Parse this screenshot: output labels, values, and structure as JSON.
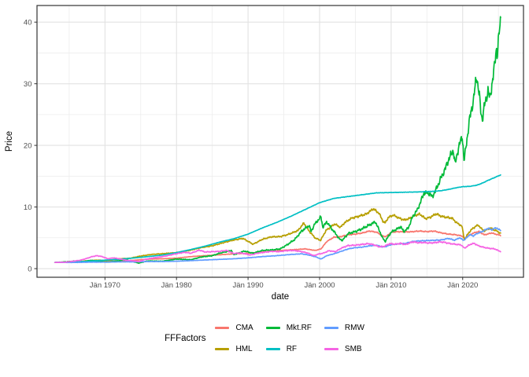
{
  "chart_data": {
    "type": "line",
    "title": "",
    "xlabel": "date",
    "ylabel": "Price",
    "legend_title": "FFFactors",
    "legend_position": "bottom",
    "grid": true,
    "x_range_years": [
      1960.5,
      2028.5
    ],
    "y_range": [
      -1.4,
      42.7
    ],
    "y_ticks": [
      0,
      10,
      20,
      30,
      40
    ],
    "y_minor": [
      5,
      15,
      25,
      35
    ],
    "x_ticks": [
      {
        "label": "Jän 1970",
        "year": 1970
      },
      {
        "label": "Jän 1980",
        "year": 1980
      },
      {
        "label": "Jän 1990",
        "year": 1990
      },
      {
        "label": "Jän 2000",
        "year": 2000
      },
      {
        "label": "Jän 2010",
        "year": 2010
      },
      {
        "label": "Jän 2020",
        "year": 2020
      }
    ],
    "x_minor_years": [
      1965,
      1975,
      1985,
      1995,
      2005,
      2015,
      2025
    ],
    "style": {
      "panel_bg": "#FFFFFF",
      "grid_major": "#E2E2E2",
      "grid_minor": "#EDEDED",
      "panel_border": "#333333",
      "tick_color": "#333333",
      "axis_text_color": "#4D4D4D",
      "axis_title_color": "#000000"
    },
    "series": [
      {
        "name": "CMA",
        "color": "#F8766D",
        "wiggle": 0.018,
        "x": [
          1963,
          1966,
          1968,
          1970,
          1972,
          1974,
          1976,
          1978,
          1980,
          1982,
          1984,
          1986,
          1988,
          1990,
          1992,
          1994,
          1996,
          1998,
          1999.4,
          2000.2,
          2001,
          2002,
          2003,
          2004,
          2005,
          2006,
          2007,
          2008,
          2008.8,
          2009.3,
          2010,
          2011,
          2012,
          2013,
          2014,
          2015,
          2016,
          2017,
          2018,
          2019,
          2019.9,
          2020.3,
          2021,
          2021.8,
          2022.3,
          2023,
          2023.5,
          2024,
          2024.6,
          2025.3
        ],
        "y": [
          1,
          1.05,
          1.1,
          1.15,
          1.25,
          1.35,
          1.55,
          1.6,
          1.7,
          1.95,
          2.1,
          2.25,
          2.4,
          2.5,
          2.7,
          2.9,
          3.05,
          3.2,
          2.95,
          3.2,
          4.4,
          5.1,
          5.2,
          5.5,
          5.6,
          5.8,
          6.1,
          5.9,
          5.3,
          5.2,
          5.9,
          6,
          5.95,
          6,
          6.1,
          6,
          6.1,
          5.8,
          5.6,
          5.5,
          5.3,
          4.9,
          5.5,
          5.9,
          6,
          5.5,
          5.6,
          5.8,
          5.6,
          5.4
        ]
      },
      {
        "name": "HML",
        "color": "#B79F00",
        "wiggle": 0.026,
        "x": [
          1963,
          1965,
          1966,
          1967.5,
          1969,
          1970.5,
          1972,
          1973.5,
          1975,
          1976.5,
          1978,
          1980,
          1982,
          1983.5,
          1985,
          1986.5,
          1988,
          1989.3,
          1990.7,
          1992,
          1993.2,
          1994.5,
          1995.5,
          1997,
          1997.8,
          1998.6,
          1999.4,
          2000.15,
          2000.9,
          2001.5,
          2002.1,
          2002.9,
          2003.5,
          2004.5,
          2005.5,
          2006.5,
          2007.5,
          2008.3,
          2008.9,
          2009.15,
          2009.6,
          2010.3,
          2011,
          2011.8,
          2012.5,
          2013.2,
          2014,
          2014.8,
          2015.5,
          2016.3,
          2017,
          2017.8,
          2018.5,
          2019.2,
          2019.9,
          2020.25,
          2020.7,
          2021.2,
          2021.9,
          2022.2,
          2022.6,
          2023,
          2023.4,
          2023.9,
          2024.3,
          2024.8,
          2025.3
        ],
        "y": [
          1,
          1.05,
          1.12,
          1.28,
          1.38,
          1.3,
          1.6,
          1.68,
          2.05,
          2.3,
          2.42,
          2.6,
          3,
          3.42,
          3.7,
          4.2,
          4.65,
          4.9,
          3.95,
          4.75,
          5.15,
          5.2,
          5.5,
          6.2,
          7.4,
          6,
          4.95,
          4.6,
          6.2,
          6.7,
          7.25,
          6.7,
          7.45,
          8.2,
          8.5,
          8.85,
          9.7,
          9,
          7.6,
          7.4,
          8.3,
          8.7,
          8.25,
          7.9,
          8.1,
          8.6,
          8.85,
          8.1,
          8.35,
          8.9,
          8.5,
          8.3,
          8.2,
          7.4,
          6.9,
          4.6,
          5.6,
          6.3,
          6.95,
          7.05,
          6.5,
          6.1,
          6.35,
          6.6,
          6.3,
          6.1,
          5.7
        ]
      },
      {
        "name": "Mkt.RF",
        "color": "#00BA38",
        "wiggle": 0.04,
        "x": [
          1963,
          1965,
          1966,
          1966.9,
          1968,
          1969.5,
          1970.5,
          1972.9,
          1974.7,
          1976,
          1978,
          1980,
          1982,
          1983.5,
          1985,
          1986,
          1987.7,
          1987.95,
          1989.5,
          1990.7,
          1992,
          1993.5,
          1994.5,
          1995.5,
          1996.5,
          1997.5,
          1998.55,
          1998.8,
          1999.3,
          2000.2,
          2000.45,
          2001,
          2001.8,
          2002.3,
          2002.75,
          2003.2,
          2004,
          2005,
          2006,
          2007.8,
          2008.8,
          2009.15,
          2010,
          2011.35,
          2011.75,
          2012.4,
          2013,
          2013.7,
          2014.6,
          2015.4,
          2015.7,
          2016.2,
          2017,
          2017.6,
          2018.1,
          2018.7,
          2018.95,
          2019.4,
          2019.95,
          2020.2,
          2020.6,
          2021,
          2021.5,
          2021.95,
          2022.35,
          2022.55,
          2022.75,
          2023.1,
          2023.55,
          2023.8,
          2024.1,
          2024.45,
          2024.7,
          2024.85,
          2025.05,
          2025.3
        ],
        "y": [
          1,
          1.15,
          1.25,
          1.1,
          1.35,
          1.15,
          1.05,
          1.45,
          0.9,
          1.25,
          1.2,
          1.55,
          1.45,
          1.9,
          2.1,
          2.5,
          2.95,
          2.25,
          2.85,
          2.5,
          2.95,
          3.05,
          3.2,
          3.9,
          4.7,
          6.1,
          7,
          6,
          7.2,
          8.4,
          6.7,
          7.6,
          6.3,
          5.6,
          4.8,
          4.6,
          5.7,
          6,
          6.5,
          7.6,
          5,
          4.4,
          5.9,
          6.8,
          6,
          6.6,
          8.4,
          9.6,
          12.3,
          12.2,
          11.6,
          12.6,
          14.8,
          16.3,
          17.9,
          19.2,
          16.9,
          19.6,
          21.5,
          17.4,
          21,
          24.5,
          27.3,
          31.4,
          27.8,
          25.4,
          24.2,
          26.8,
          28.9,
          27.5,
          30,
          32.8,
          35.8,
          34.8,
          37.6,
          40.3
        ]
      },
      {
        "name": "RF",
        "color": "#00BFC4",
        "wiggle": 0.003,
        "x": [
          1963,
          1966,
          1968,
          1970,
          1972,
          1974,
          1976,
          1978,
          1980,
          1982,
          1984,
          1986,
          1988,
          1990,
          1992,
          1994,
          1996,
          1998,
          2000,
          2002,
          2004,
          2006,
          2008,
          2010,
          2012,
          2014,
          2016,
          2017,
          2018,
          2019,
          2020,
          2021,
          2022,
          2022.8,
          2023.5,
          2024.3,
          2025.3
        ],
        "y": [
          1,
          1.12,
          1.22,
          1.38,
          1.52,
          1.72,
          1.95,
          2.2,
          2.6,
          3.1,
          3.65,
          4.3,
          4.85,
          5.6,
          6.6,
          7.5,
          8.5,
          9.6,
          10.7,
          11.4,
          11.7,
          12,
          12.3,
          12.35,
          12.4,
          12.45,
          12.55,
          12.65,
          12.85,
          13.1,
          13.3,
          13.35,
          13.55,
          13.9,
          14.3,
          14.7,
          15.2
        ]
      },
      {
        "name": "RMW",
        "color": "#619CFF",
        "wiggle": 0.02,
        "x": [
          1963,
          1966,
          1968,
          1970,
          1972,
          1974,
          1976,
          1978,
          1980,
          1982,
          1984,
          1986,
          1988,
          1990,
          1992,
          1994,
          1996,
          1997.5,
          1998.5,
          1999.5,
          2000.2,
          2001,
          2002,
          2003,
          2004,
          2005,
          2006,
          2007,
          2008,
          2008.8,
          2009.3,
          2010,
          2011,
          2012,
          2013,
          2014,
          2015,
          2016,
          2017,
          2018,
          2018.9,
          2019.5,
          2020.2,
          2020.6,
          2021,
          2021.5,
          2022,
          2022.5,
          2023,
          2023.6,
          2024,
          2024.4,
          2024.75,
          2025,
          2025.3
        ],
        "y": [
          1,
          1,
          1.05,
          1.05,
          1.1,
          1.1,
          1.15,
          1.15,
          1.2,
          1.3,
          1.4,
          1.5,
          1.6,
          1.75,
          1.95,
          2.1,
          2.3,
          2.4,
          2.2,
          1.9,
          1.55,
          2.1,
          2.4,
          2.8,
          3.2,
          3.4,
          3.5,
          3.7,
          3.8,
          3.5,
          3.6,
          3.9,
          4,
          4.1,
          4.4,
          4.5,
          4.55,
          4.6,
          4.65,
          4.9,
          4.6,
          5,
          4.6,
          5.1,
          5.5,
          5.3,
          5.7,
          5.9,
          6.2,
          6.55,
          6.3,
          6.5,
          6.6,
          6.4,
          6.2
        ]
      },
      {
        "name": "SMB",
        "color": "#F564E3",
        "wiggle": 0.032,
        "x": [
          1963,
          1964.5,
          1965.5,
          1966.5,
          1967.3,
          1968.2,
          1968.9,
          1969.6,
          1970.4,
          1971.2,
          1972,
          1973,
          1974,
          1974.8,
          1975.5,
          1976.5,
          1977.5,
          1978.5,
          1979.5,
          1980.4,
          1981.2,
          1982,
          1983.2,
          1984,
          1985,
          1986,
          1987,
          1988,
          1989,
          1990.3,
          1991.3,
          1992.3,
          1993.3,
          1994.3,
          1995.3,
          1996.3,
          1997.3,
          1998.3,
          1999.2,
          1999.8,
          2000.5,
          2001.3,
          2002.2,
          2003,
          2004,
          2005,
          2006,
          2006.8,
          2007.5,
          2008.3,
          2009,
          2009.8,
          2010.5,
          2011.3,
          2012,
          2013,
          2013.8,
          2014.5,
          2015.3,
          2016,
          2016.8,
          2017.5,
          2018.3,
          2019,
          2019.8,
          2020.25,
          2020.8,
          2021.2,
          2021.6,
          2022.2,
          2022.8,
          2023.4,
          2024,
          2024.5,
          2025,
          2025.3
        ],
        "y": [
          1,
          1.05,
          1.2,
          1.35,
          1.6,
          1.95,
          2.1,
          1.95,
          1.6,
          1.75,
          1.6,
          1.35,
          1.25,
          1.15,
          1.45,
          1.7,
          1.85,
          2.05,
          2.3,
          2.5,
          2.65,
          2.5,
          3,
          2.7,
          2.75,
          2.8,
          2.95,
          2.45,
          2.55,
          2.2,
          2.5,
          2.65,
          2.8,
          2.75,
          2.9,
          2.95,
          2.8,
          2.55,
          2.1,
          2.35,
          2.5,
          2.9,
          2.75,
          3.3,
          3.75,
          3.8,
          3.95,
          4.05,
          3.9,
          3.55,
          3.6,
          4.05,
          3.95,
          4.1,
          3.9,
          4.35,
          4.2,
          4.25,
          4.15,
          4.2,
          4.35,
          4.25,
          4.05,
          3.95,
          3.85,
          3.3,
          3.75,
          4,
          4.1,
          3.7,
          3.5,
          3.35,
          3.25,
          3.2,
          2.9,
          2.8
        ]
      }
    ]
  }
}
